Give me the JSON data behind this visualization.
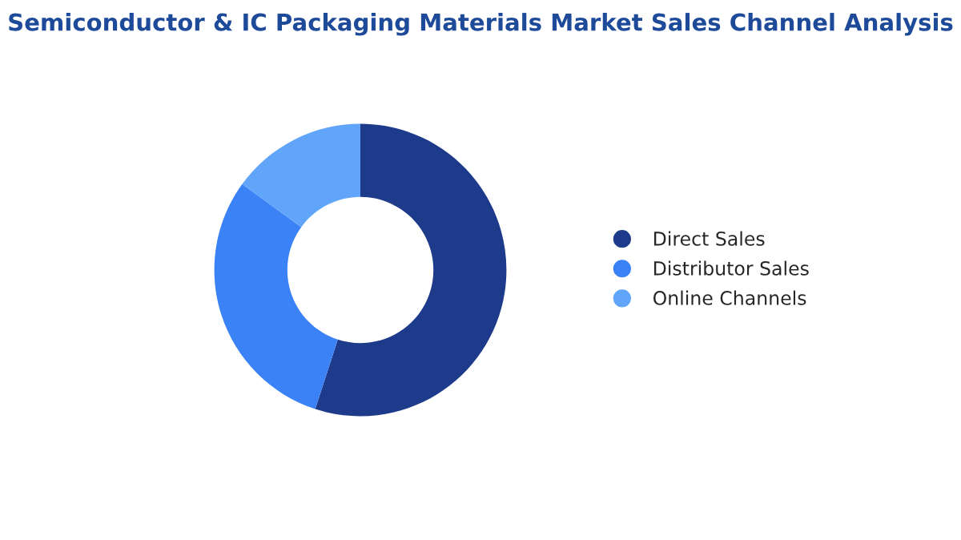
{
  "chart_data": {
    "type": "donut",
    "title": "Semiconductor & IC Packaging Materials Market Sales Channel Analysis",
    "categories": [
      "Direct Sales",
      "Distributor Sales",
      "Online Channels"
    ],
    "values": [
      55,
      30,
      15
    ],
    "colors": [
      "#1e3a8a",
      "#3b82f6",
      "#60a5fa"
    ],
    "legend": "right"
  }
}
